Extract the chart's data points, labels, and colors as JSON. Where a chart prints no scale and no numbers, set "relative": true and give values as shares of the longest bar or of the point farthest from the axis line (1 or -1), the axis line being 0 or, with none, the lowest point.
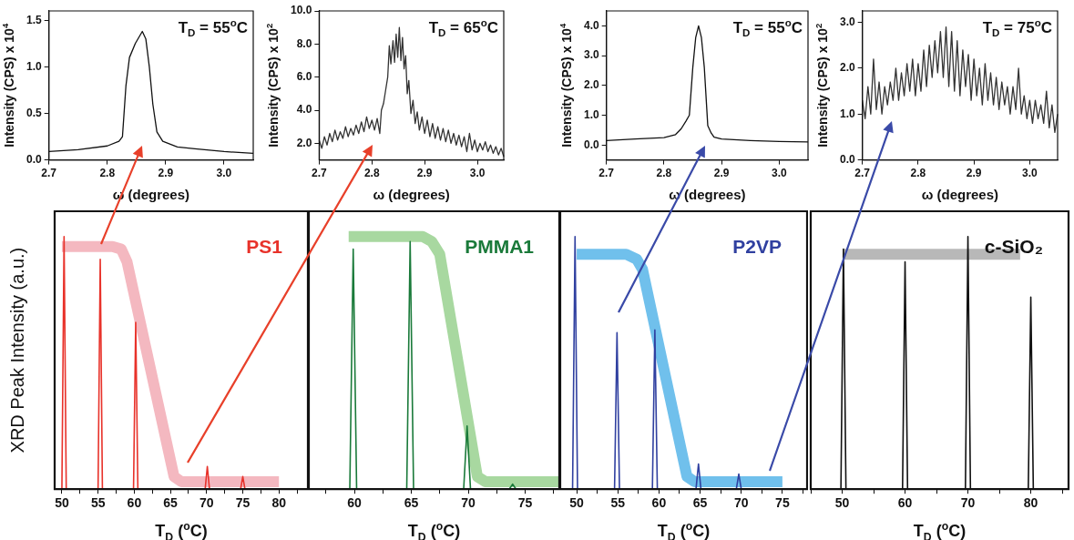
{
  "chart_data": [
    {
      "type": "line",
      "title": "T$_{D}$ = 55$^{o}$C",
      "xlabel": "ω (degrees)",
      "ylabel": "Intensity (CPS) x 10$^{4}$",
      "xlim": [
        2.7,
        3.05
      ],
      "ylim": [
        0,
        1.6
      ],
      "xticks": [
        2.7,
        2.8,
        2.9,
        {
          "value": 3,
          "label": "3.0"
        }
      ],
      "yticks": [
        {
          "value": 0,
          "label": "0.0"
        },
        0.5,
        {
          "value": 1,
          "label": "1.0"
        },
        1.5
      ],
      "grid": false,
      "series": [
        {
          "color": "#111111",
          "x": [
            2.7,
            2.75,
            2.8,
            2.82,
            2.826,
            2.832,
            2.838,
            2.848,
            2.86,
            2.866,
            2.872,
            2.878,
            2.885,
            2.895,
            2.92,
            2.95,
            3.0,
            3.05
          ],
          "values": [
            0.09,
            0.11,
            0.15,
            0.2,
            0.25,
            0.8,
            1.1,
            1.25,
            1.38,
            1.3,
            1.0,
            0.6,
            0.3,
            0.2,
            0.14,
            0.12,
            0.09,
            0.07
          ]
        }
      ]
    },
    {
      "type": "line",
      "title": "T$_{D}$ = 65$^{o}$C",
      "xlabel": "ω (degrees)",
      "ylabel": "Intensity (CPS) x 10$^{2}$",
      "xlim": [
        2.7,
        3.05
      ],
      "ylim": [
        1,
        10
      ],
      "xticks": [
        2.7,
        2.8,
        2.9,
        {
          "value": 3,
          "label": "3.0"
        }
      ],
      "yticks": [
        {
          "value": 2,
          "label": "2.0"
        },
        {
          "value": 4,
          "label": "4.0"
        },
        {
          "value": 6,
          "label": "6.0"
        },
        {
          "value": 8,
          "label": "8.0"
        },
        {
          "value": 10,
          "label": "10.0"
        }
      ],
      "grid": false,
      "series": [
        {
          "color": "#333333",
          "x": [
            2.7,
            2.705,
            2.71,
            2.715,
            2.72,
            2.725,
            2.73,
            2.735,
            2.74,
            2.745,
            2.75,
            2.755,
            2.76,
            2.765,
            2.77,
            2.775,
            2.78,
            2.785,
            2.79,
            2.795,
            2.8,
            2.805,
            2.81,
            2.815,
            2.818,
            2.822,
            2.826,
            2.83,
            2.833,
            2.836,
            2.84,
            2.843,
            2.846,
            2.849,
            2.852,
            2.855,
            2.858,
            2.861,
            2.864,
            2.867,
            2.87,
            2.874,
            2.878,
            2.882,
            2.886,
            2.89,
            2.895,
            2.9,
            2.905,
            2.91,
            2.915,
            2.92,
            2.925,
            2.93,
            2.935,
            2.94,
            2.945,
            2.95,
            2.955,
            2.96,
            2.965,
            2.97,
            2.975,
            2.98,
            2.985,
            2.99,
            2.995,
            3.0,
            3.005,
            3.01,
            3.015,
            3.02,
            3.025,
            3.03,
            3.035,
            3.04,
            3.045,
            3.05
          ],
          "values": [
            2.2,
            1.7,
            2.4,
            1.9,
            2.6,
            2.1,
            2.8,
            2.2,
            2.7,
            2.3,
            3.0,
            2.4,
            2.9,
            2.5,
            3.1,
            2.6,
            3.3,
            2.7,
            3.6,
            2.9,
            3.4,
            2.8,
            3.5,
            2.6,
            4.0,
            4.4,
            5.2,
            6.0,
            7.9,
            6.8,
            8.2,
            6.9,
            8.6,
            7.2,
            9.0,
            7.0,
            8.4,
            6.5,
            7.3,
            5.0,
            5.8,
            3.8,
            4.6,
            3.2,
            3.9,
            2.8,
            3.6,
            2.6,
            3.4,
            2.4,
            3.2,
            2.3,
            3.0,
            2.2,
            2.9,
            2.1,
            2.8,
            2.0,
            2.6,
            1.9,
            2.5,
            1.8,
            2.4,
            1.5,
            2.6,
            1.6,
            2.2,
            1.5,
            2.0,
            1.6,
            2.1,
            1.5,
            1.9,
            1.4,
            1.8,
            1.3,
            1.7,
            1.2
          ]
        }
      ]
    },
    {
      "type": "line",
      "title": "T$_{D}$ = 55$^{o}$C",
      "xlabel": "ω (degrees)",
      "ylabel": "Intensity (CPS) x 10$^{4}$",
      "xlim": [
        2.7,
        3.05
      ],
      "ylim": [
        -0.5,
        4.5
      ],
      "xticks": [
        2.7,
        2.8,
        2.9,
        {
          "value": 3,
          "label": "3.0"
        }
      ],
      "yticks": [
        {
          "value": 0,
          "label": "0.0"
        },
        {
          "value": 1,
          "label": "1.0"
        },
        {
          "value": 2,
          "label": "2.0"
        },
        {
          "value": 3,
          "label": "3.0"
        },
        {
          "value": 4,
          "label": "4.0"
        }
      ],
      "grid": false,
      "series": [
        {
          "color": "#111111",
          "x": [
            2.7,
            2.75,
            2.8,
            2.82,
            2.83,
            2.838,
            2.844,
            2.85,
            2.855,
            2.86,
            2.865,
            2.87,
            2.876,
            2.882,
            2.887,
            2.9,
            2.95,
            3.0,
            3.05
          ],
          "values": [
            0.15,
            0.2,
            0.25,
            0.35,
            0.55,
            0.8,
            1.0,
            2.6,
            3.6,
            4.0,
            3.6,
            2.6,
            0.65,
            0.4,
            0.26,
            0.2,
            0.15,
            0.12,
            0.1
          ]
        }
      ]
    },
    {
      "type": "line",
      "title": "T$_{D}$ = 75$^{o}$C",
      "xlabel": "ω (degrees)",
      "ylabel": "Intensity (CPS) x 10$^{2}$",
      "xlim": [
        2.7,
        3.05
      ],
      "ylim": [
        0,
        3.25
      ],
      "xticks": [
        2.7,
        2.8,
        2.9,
        {
          "value": 3,
          "label": "3.0"
        }
      ],
      "yticks": [
        {
          "value": 0,
          "label": "0.0"
        },
        {
          "value": 1,
          "label": "1.0"
        },
        {
          "value": 2,
          "label": "2.0"
        },
        {
          "value": 3,
          "label": "3.0"
        }
      ],
      "grid": false,
      "series": [
        {
          "color": "#333333",
          "x": [
            2.7,
            2.705,
            2.71,
            2.715,
            2.72,
            2.725,
            2.73,
            2.735,
            2.74,
            2.745,
            2.75,
            2.755,
            2.76,
            2.765,
            2.77,
            2.775,
            2.78,
            2.785,
            2.79,
            2.795,
            2.8,
            2.805,
            2.81,
            2.815,
            2.82,
            2.825,
            2.83,
            2.835,
            2.84,
            2.845,
            2.85,
            2.855,
            2.86,
            2.865,
            2.87,
            2.875,
            2.88,
            2.885,
            2.89,
            2.895,
            2.9,
            2.905,
            2.91,
            2.915,
            2.92,
            2.925,
            2.93,
            2.935,
            2.94,
            2.945,
            2.95,
            2.955,
            2.96,
            2.965,
            2.97,
            2.975,
            2.98,
            2.985,
            2.99,
            2.995,
            3.0,
            3.005,
            3.01,
            3.015,
            3.02,
            3.025,
            3.03,
            3.035,
            3.04,
            3.045,
            3.05
          ],
          "values": [
            1.3,
            0.9,
            1.6,
            1.0,
            2.2,
            1.1,
            1.7,
            1.0,
            1.6,
            1.2,
            1.7,
            1.3,
            2.0,
            1.3,
            1.9,
            1.4,
            2.1,
            1.5,
            2.2,
            1.4,
            2.1,
            1.5,
            2.4,
            1.6,
            2.5,
            1.8,
            2.6,
            1.9,
            2.8,
            1.8,
            2.9,
            1.6,
            2.8,
            1.5,
            2.6,
            1.4,
            2.4,
            1.6,
            2.3,
            1.3,
            2.2,
            1.4,
            2.0,
            1.2,
            2.1,
            1.3,
            1.9,
            1.2,
            1.8,
            1.1,
            1.7,
            1.2,
            1.6,
            1.0,
            1.6,
            1.1,
            2.0,
            1.0,
            1.4,
            0.9,
            1.3,
            0.8,
            1.3,
            0.9,
            1.2,
            0.8,
            1.5,
            0.7,
            1.2,
            0.6,
            1.0
          ]
        }
      ]
    },
    {
      "type": "line",
      "title": "PS1",
      "xlabel": "T$_{D}$ ($^{o}$C)",
      "ylabel": "XRD Peak Intensity (a.u.)",
      "relative": true,
      "tick_labels": "x",
      "grid": false,
      "xlim": [
        49,
        84
      ],
      "xticks": [
        50,
        {
          "value": 52.5,
          "label": null
        },
        55,
        {
          "value": 57.5,
          "label": null
        },
        60,
        {
          "value": 62.5,
          "label": null
        },
        65,
        {
          "value": 67.5,
          "label": null
        },
        70,
        {
          "value": 72.5,
          "label": null
        },
        75,
        {
          "value": 77.5,
          "label": null
        },
        80,
        {
          "value": 82.5,
          "label": null
        }
      ],
      "series": [
        {
          "color": "#e8322a",
          "x": [
            50.0,
            50.3,
            50.6,
            55.0,
            55.3,
            55.6,
            59.9,
            60.2,
            60.5,
            69.8,
            70.1,
            70.4,
            74.7,
            75,
            75.3
          ],
          "values": [
            0,
            1,
            0,
            0,
            0.91,
            0,
            0,
            0.66,
            0,
            0,
            0.09,
            0,
            0,
            0.05,
            0
          ]
        },
        {
          "color": "#f4b8c0",
          "x": [
            50,
            57,
            58.2,
            59,
            65.5,
            66.5,
            80
          ],
          "values": [
            0.96,
            0.96,
            0.95,
            0.9,
            0.05,
            0.03,
            0.03
          ]
        }
      ]
    },
    {
      "type": "line",
      "title": "PMMA1",
      "xlabel": "T$_{D}$ ($^{o}$C)",
      "relative": true,
      "tick_labels": "x",
      "grid": false,
      "xlim": [
        56,
        78
      ],
      "xticks": [
        {
          "value": 57.5,
          "label": null
        },
        60,
        {
          "value": 62.5,
          "label": null
        },
        65,
        {
          "value": 67.5,
          "label": null
        },
        70,
        {
          "value": 72.5,
          "label": null
        },
        75,
        {
          "value": 77.5,
          "label": null
        }
      ],
      "series": [
        {
          "color": "#1a7a3a",
          "x": [
            59.6,
            59.9,
            60.2,
            64.6,
            64.9,
            65.2,
            69.6,
            69.9,
            70.2,
            73.6,
            73.9,
            74.2
          ],
          "values": [
            0,
            0.95,
            0,
            0,
            0.98,
            0,
            0,
            0.25,
            0,
            0,
            0.02,
            0
          ]
        },
        {
          "color": "#a8d8a0",
          "x": [
            59.5,
            66,
            66.8,
            67.5,
            70.8,
            71.5,
            78
          ],
          "values": [
            1,
            1,
            0.98,
            0.93,
            0.05,
            0.03,
            0.03
          ]
        }
      ]
    },
    {
      "type": "line",
      "title": "P2VP",
      "xlabel": "T$_{D}$ ($^{o}$C)",
      "relative": true,
      "tick_labels": "x",
      "grid": false,
      "xlim": [
        48,
        78
      ],
      "xticks": [
        50,
        {
          "value": 52.5,
          "label": null
        },
        55,
        {
          "value": 57.5,
          "label": null
        },
        60,
        {
          "value": 62.5,
          "label": null
        },
        65,
        {
          "value": 67.5,
          "label": null
        },
        70,
        {
          "value": 72.5,
          "label": null
        },
        75,
        {
          "value": 77.5,
          "label": null
        }
      ],
      "series": [
        {
          "color": "#3040a0",
          "x": [
            49.5,
            49.8,
            50.1,
            54.6,
            54.9,
            55.2,
            59.2,
            59.5,
            59.8,
            64.5,
            64.8,
            65.1,
            69.4,
            69.7,
            70.0
          ],
          "values": [
            0,
            1,
            0,
            0,
            0.62,
            0,
            0,
            0.63,
            0,
            0,
            0.1,
            0,
            0,
            0.06,
            0
          ]
        },
        {
          "color": "#70c0ec",
          "x": [
            50,
            56,
            57.3,
            58,
            63.4,
            64.3,
            75
          ],
          "values": [
            0.93,
            0.93,
            0.91,
            0.87,
            0.05,
            0.03,
            0.03
          ]
        }
      ]
    },
    {
      "type": "line",
      "title": "c-SiO₂",
      "xlabel": "T$_{D}$ ($^{o}$C)",
      "relative": true,
      "tick_labels": "x",
      "grid": false,
      "xlim": [
        45,
        86
      ],
      "xticks": [
        {
          "value": 45,
          "label": null
        },
        50,
        {
          "value": 55,
          "label": null
        },
        60,
        {
          "value": 65,
          "label": null
        },
        70,
        {
          "value": 75,
          "label": null
        },
        80,
        {
          "value": 85,
          "label": null
        }
      ],
      "series": [
        {
          "color": "#111111",
          "x": [
            49.8,
            50.2,
            50.6,
            59.6,
            60,
            60.4,
            69.6,
            70,
            70.4,
            79.6,
            80,
            80.4
          ],
          "values": [
            0,
            0.95,
            0,
            0,
            0.9,
            0,
            0,
            1,
            0,
            0,
            0.76,
            0
          ]
        },
        {
          "color": "#b8b8b8",
          "x": [
            50.2,
            78.3
          ],
          "values": [
            0.93,
            0.93
          ]
        }
      ]
    }
  ]
}
